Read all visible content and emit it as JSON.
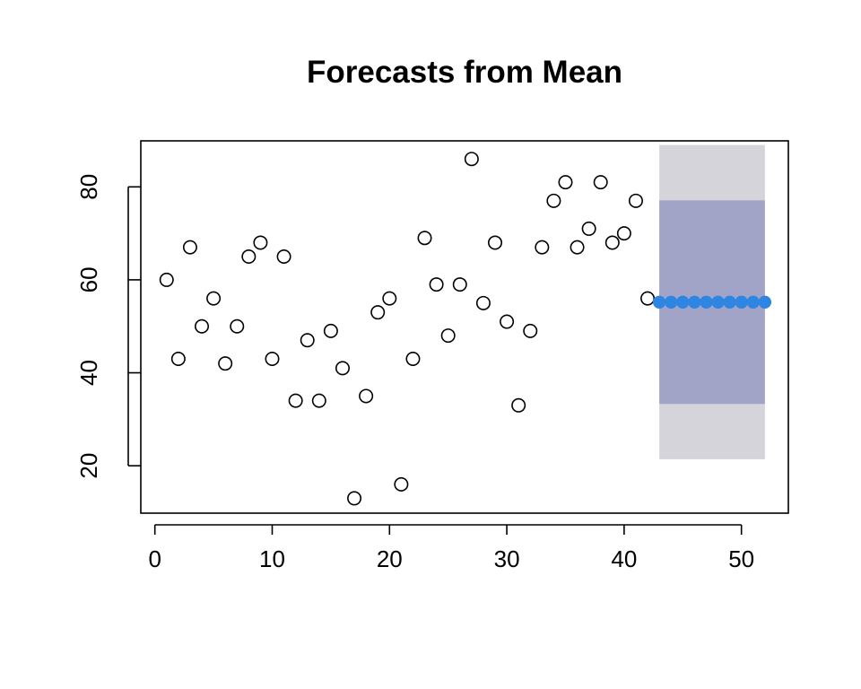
{
  "chart_data": {
    "type": "scatter",
    "title": "Forecasts from Mean",
    "xlabel": "",
    "ylabel": "",
    "xlim": [
      -1.2,
      54
    ],
    "ylim": [
      9.8,
      89.9
    ],
    "x_ticks": [
      0,
      10,
      20,
      30,
      40,
      50
    ],
    "y_ticks": [
      20,
      40,
      60,
      80
    ],
    "grid": false,
    "legend": "none",
    "series": [
      {
        "kind": "observed",
        "marker": "open-circle",
        "color": "#000000",
        "x": [
          1,
          2,
          3,
          4,
          5,
          6,
          7,
          8,
          9,
          10,
          11,
          12,
          13,
          14,
          15,
          16,
          17,
          18,
          19,
          20,
          21,
          22,
          23,
          24,
          25,
          26,
          27,
          28,
          29,
          30,
          31,
          32,
          33,
          34,
          35,
          36,
          37,
          38,
          39,
          40,
          41,
          42
        ],
        "y": [
          60,
          43,
          67,
          50,
          56,
          42,
          50,
          65,
          68,
          43,
          65,
          34,
          47,
          34,
          49,
          41,
          13,
          35,
          53,
          56,
          16,
          43,
          69,
          59,
          48,
          59,
          86,
          55,
          68,
          51,
          33,
          49,
          67,
          77,
          81,
          67,
          71,
          81,
          68,
          70,
          77,
          56
        ]
      },
      {
        "kind": "forecast",
        "marker": "filled-circle",
        "color": "#2f86e2",
        "x": [
          43,
          44,
          45,
          46,
          47,
          48,
          49,
          50,
          51,
          52
        ],
        "y": [
          55.2,
          55.2,
          55.2,
          55.2,
          55.2,
          55.2,
          55.2,
          55.2,
          55.2,
          55.2
        ]
      }
    ],
    "intervals": [
      {
        "level": 95,
        "x_range": [
          43,
          52
        ],
        "lower": 21.4,
        "upper": 89.0,
        "color": "#d5d4da"
      },
      {
        "level": 80,
        "x_range": [
          43,
          52
        ],
        "lower": 33.3,
        "upper": 77.1,
        "color": "#a1a4c6"
      }
    ]
  }
}
